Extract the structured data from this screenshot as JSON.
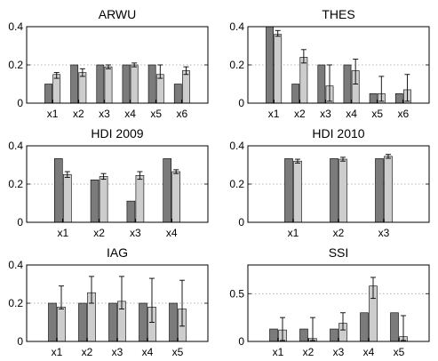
{
  "chart_data": [
    {
      "type": "bar",
      "title": "ARWU",
      "categories": [
        "x1",
        "x2",
        "x3",
        "x4",
        "x5",
        "x6"
      ],
      "ylim": [
        0,
        0.4
      ],
      "yticks": [
        "0",
        "0.2",
        "0.4"
      ],
      "grid": true,
      "series": [
        {
          "values": [
            0.1,
            0.2,
            0.2,
            0.2,
            0.2,
            0.1
          ]
        },
        {
          "values": [
            0.15,
            0.16,
            0.19,
            0.2,
            0.15,
            0.17
          ],
          "err_low": [
            0.13,
            0.14,
            0.18,
            0.19,
            0.13,
            0.15
          ],
          "err_high": [
            0.16,
            0.18,
            0.2,
            0.21,
            0.2,
            0.19
          ]
        }
      ]
    },
    {
      "type": "bar",
      "title": "THES",
      "categories": [
        "x1",
        "x2",
        "x3",
        "x4",
        "x5",
        "x6"
      ],
      "ylim": [
        0,
        0.4
      ],
      "yticks": [
        "0",
        "0.2",
        "0.4"
      ],
      "grid": true,
      "series": [
        {
          "values": [
            0.4,
            0.1,
            0.2,
            0.2,
            0.05,
            0.05
          ]
        },
        {
          "values": [
            0.36,
            0.24,
            0.09,
            0.17,
            0.05,
            0.07
          ],
          "err_low": [
            0.35,
            0.21,
            0.01,
            0.1,
            0.01,
            0.01
          ],
          "err_high": [
            0.38,
            0.28,
            0.2,
            0.23,
            0.14,
            0.15
          ]
        }
      ]
    },
    {
      "type": "bar",
      "title": "HDI 2009",
      "categories": [
        "x1",
        "x2",
        "x3",
        "x4"
      ],
      "ylim": [
        0,
        0.4
      ],
      "yticks": [
        "0",
        "0.2",
        "0.4"
      ],
      "grid": true,
      "series": [
        {
          "values": [
            0.333,
            0.222,
            0.111,
            0.333
          ]
        },
        {
          "values": [
            0.25,
            0.24,
            0.245,
            0.265
          ],
          "err_low": [
            0.235,
            0.225,
            0.225,
            0.255
          ],
          "err_high": [
            0.265,
            0.255,
            0.265,
            0.275
          ]
        }
      ]
    },
    {
      "type": "bar",
      "title": "HDI 2010",
      "categories": [
        "x1",
        "x2",
        "x3"
      ],
      "ylim": [
        0,
        0.4
      ],
      "yticks": [
        "0",
        "0.2",
        "0.4"
      ],
      "grid": true,
      "series": [
        {
          "values": [
            0.333,
            0.333,
            0.333
          ]
        },
        {
          "values": [
            0.32,
            0.33,
            0.345
          ],
          "err_low": [
            0.31,
            0.32,
            0.335
          ],
          "err_high": [
            0.33,
            0.34,
            0.355
          ]
        }
      ]
    },
    {
      "type": "bar",
      "title": "IAG",
      "categories": [
        "x1",
        "x2",
        "x3",
        "x4",
        "x5"
      ],
      "ylim": [
        0,
        0.4
      ],
      "yticks": [
        "0",
        "0.2",
        "0.4"
      ],
      "grid": true,
      "series": [
        {
          "values": [
            0.2,
            0.2,
            0.2,
            0.2,
            0.2
          ]
        },
        {
          "values": [
            0.18,
            0.255,
            0.21,
            0.18,
            0.17
          ],
          "err_low": [
            0.17,
            0.2,
            0.17,
            0.1,
            0.08
          ],
          "err_high": [
            0.29,
            0.34,
            0.34,
            0.33,
            0.32
          ]
        }
      ]
    },
    {
      "type": "bar",
      "title": "SSI",
      "categories": [
        "x1",
        "x2",
        "x3",
        "x4",
        "x5"
      ],
      "ylim": [
        0,
        0.8
      ],
      "yticks": [
        "0",
        "0.5"
      ],
      "grid": true,
      "series": [
        {
          "values": [
            0.13,
            0.13,
            0.13,
            0.3,
            0.3
          ]
        },
        {
          "values": [
            0.12,
            0.03,
            0.19,
            0.58,
            0.05
          ],
          "err_low": [
            0.01,
            0.01,
            0.12,
            0.45,
            0.01
          ],
          "err_high": [
            0.25,
            0.25,
            0.3,
            0.67,
            0.27
          ]
        }
      ]
    }
  ],
  "colors": {
    "series_a": "#7b7b7b",
    "series_b": "#cdcdcd"
  }
}
